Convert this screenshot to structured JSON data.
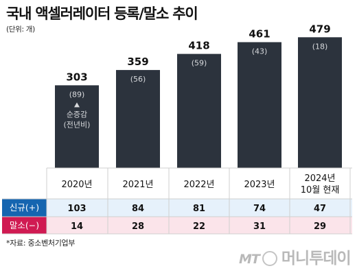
{
  "title": "국내 액셀러레이터 등록/말소 추이",
  "unit": "(단위: 개)",
  "chart_data": {
    "type": "bar",
    "categories": [
      "2020년",
      "2021년",
      "2022년",
      "2023년",
      "2024년 10월 현재"
    ],
    "values": [
      303,
      359,
      418,
      461,
      479
    ],
    "net_change_labels": [
      "(89)",
      "(56)",
      "(59)",
      "(43)",
      "(18)"
    ],
    "net_change_note": "순증감",
    "net_change_note_sub": "(전년비)",
    "title": "국내 액셀러레이터 등록/말소 추이",
    "ylim": [
      0,
      520
    ],
    "grid": false
  },
  "table": {
    "rows": [
      {
        "label": "신규(+)",
        "values": [
          "103",
          "84",
          "81",
          "74",
          "47"
        ]
      },
      {
        "label": "말소(−)",
        "values": [
          "14",
          "28",
          "22",
          "31",
          "29"
        ]
      }
    ]
  },
  "colors": {
    "bar": "#2c333d",
    "new_row_bg": "#e6f1fb",
    "new_label_bg": "#1565b0",
    "del_row_bg": "#fbe4ea",
    "del_label_bg": "#d01a52",
    "grid_line": "#cfcfcf",
    "sub_text": "#d8dadd"
  },
  "footnote": "*자료: 중소벤처기업부",
  "watermark": {
    "logo": "MT",
    "text": "머니투데이"
  }
}
